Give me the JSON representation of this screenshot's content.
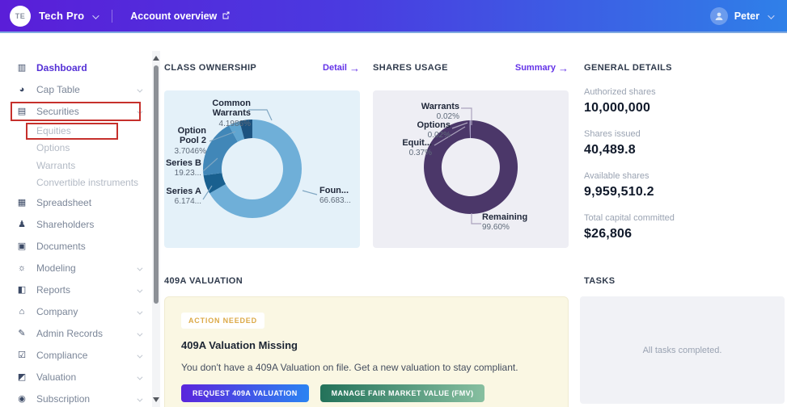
{
  "navbar": {
    "company_initials": "TE",
    "company_name": "Tech Pro",
    "account_link": "Account overview",
    "user_name": "Peter"
  },
  "sidebar": {
    "items": [
      {
        "label": "Dashboard",
        "icon": "dashboard-icon",
        "active": true
      },
      {
        "label": "Cap Table",
        "icon": "cap-table-icon",
        "chevron": true
      },
      {
        "label": "Securities",
        "icon": "securities-icon",
        "chevron": true
      },
      {
        "label": "Equities",
        "sub": true
      },
      {
        "label": "Options",
        "sub": true
      },
      {
        "label": "Warrants",
        "sub": true
      },
      {
        "label": "Convertible instruments",
        "sub": true
      },
      {
        "label": "Spreadsheet",
        "icon": "spreadsheet-icon"
      },
      {
        "label": "Shareholders",
        "icon": "shareholders-icon"
      },
      {
        "label": "Documents",
        "icon": "documents-icon"
      },
      {
        "label": "Modeling",
        "icon": "modeling-icon",
        "chevron": true
      },
      {
        "label": "Reports",
        "icon": "reports-icon",
        "chevron": true
      },
      {
        "label": "Company",
        "icon": "company-icon",
        "chevron": true
      },
      {
        "label": "Admin Records",
        "icon": "admin-records-icon",
        "chevron": true
      },
      {
        "label": "Compliance",
        "icon": "compliance-icon",
        "chevron": true
      },
      {
        "label": "Valuation",
        "icon": "valuation-icon",
        "chevron": true
      },
      {
        "label": "Subscription",
        "icon": "subscription-icon",
        "chevron": true
      }
    ]
  },
  "sections": {
    "class_ownership": {
      "title": "CLASS OWNERSHIP",
      "link": "Detail"
    },
    "shares_usage": {
      "title": "SHARES USAGE",
      "link": "Summary"
    },
    "general_details": {
      "title": "GENERAL DETAILS"
    },
    "valuation_409a": {
      "title": "409A VALUATION"
    },
    "tasks": {
      "title": "TASKS",
      "empty_message": "All tasks completed."
    }
  },
  "chart_data": [
    {
      "type": "pie",
      "style": "donut",
      "title": "CLASS OWNERSHIP",
      "segments": [
        {
          "label": "Founders",
          "display": "Foun...",
          "pct_label": "66.683...",
          "value": 66.683,
          "color": "#6FAFD8"
        },
        {
          "label": "Series A",
          "pct_label": "6.174...",
          "value": 6.174,
          "color": "#19608F"
        },
        {
          "label": "Series B",
          "pct_label": "19.23...",
          "value": 19.23,
          "color": "#4187B8"
        },
        {
          "label": "Option Pool 2",
          "pct_label": "3.7046%",
          "value": 3.7046,
          "color": "#60A5D0"
        },
        {
          "label": "Common Warrants",
          "pct_label": "4.1986%",
          "value": 4.1986,
          "color": "#1C5380"
        }
      ]
    },
    {
      "type": "pie",
      "style": "donut",
      "title": "SHARES USAGE",
      "segments": [
        {
          "label": "Remaining",
          "pct_label": "99.60%",
          "value": 99.6,
          "color": "#4B3769"
        },
        {
          "label": "Equities",
          "display": "Equit...",
          "pct_label": "0.37%",
          "value": 0.37,
          "color": "#9D92BE"
        },
        {
          "label": "Options",
          "pct_label": "0.02%",
          "value": 0.02,
          "color": "#C9C1DC"
        },
        {
          "label": "Warrants",
          "pct_label": "0.02%",
          "value": 0.02,
          "color": "#7A6C9E"
        }
      ]
    }
  ],
  "general_details": {
    "stats": [
      {
        "label": "Authorized shares",
        "value": "10,000,000"
      },
      {
        "label": "Shares issued",
        "value": "40,489.8"
      },
      {
        "label": "Available shares",
        "value": "9,959,510.2"
      },
      {
        "label": "Total capital committed",
        "value": "$26,806"
      }
    ]
  },
  "valuation_409a": {
    "badge": "ACTION NEEDED",
    "heading": "409A Valuation Missing",
    "body": "You don't have a 409A Valuation on file. Get a new valuation to stay compliant.",
    "buttons": [
      {
        "label": "REQUEST 409A VALUATION"
      },
      {
        "label": "MANAGE FAIR MARKET VALUE (FMV)"
      }
    ]
  },
  "colors": {
    "navbar_gradient_start": "#5A1ED8",
    "navbar_gradient_end": "#2F80E8",
    "accent_link": "#6433E8",
    "active_nav": "#5430D6",
    "badge_text": "#DCA947",
    "annotation_box": "#C6302C",
    "class_panel_bg": "#E4F1F9",
    "shares_panel_bg": "#EEEEF4",
    "valuation_panel_bg": "#FAF7E3",
    "tasks_panel_bg": "#F1F2F6"
  }
}
